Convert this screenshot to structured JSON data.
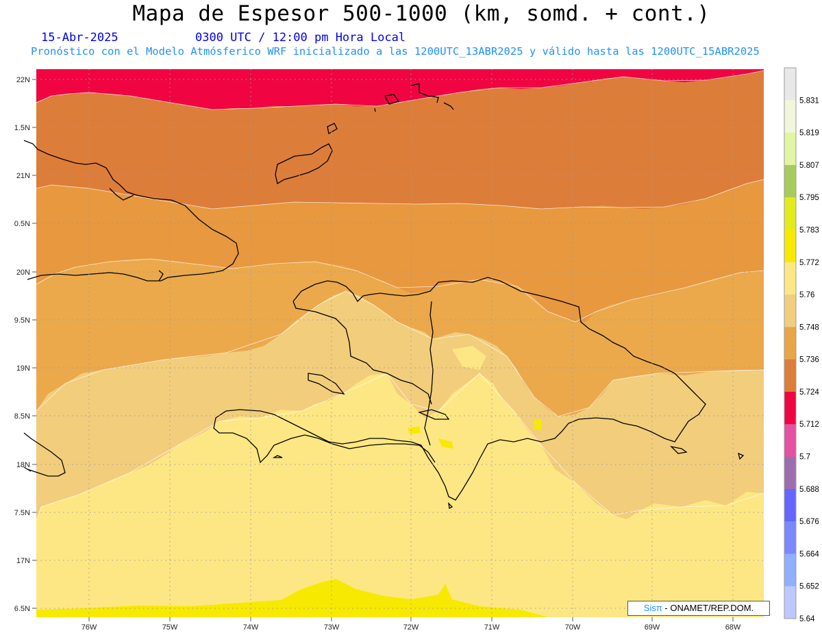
{
  "header": {
    "title": "Mapa de Espesor 500-1000 (km, somd. + cont.)",
    "date": "15-Abr-2025",
    "time": "0300 UTC / 12:00 pm Hora Local",
    "subtitle": "Pronóstico con el Modelo Atmósferico WRF inicializado a las 1200UTC_13ABR2025 y válido hasta las  1200UTC_15ABR2025"
  },
  "axes": {
    "lat_labels": [
      "22N",
      "1.5N",
      "21N",
      "0.5N",
      "20N",
      "9.5N",
      "19N",
      "8.5N",
      "18N",
      "7.5N",
      "17N",
      "6.5N"
    ],
    "lon_labels": [
      "76W",
      "75W",
      "74W",
      "73W",
      "72W",
      "71W",
      "70W",
      "69W",
      "68W"
    ]
  },
  "colorbar": {
    "labels": [
      "5.831",
      "5.819",
      "5.807",
      "5.795",
      "5.783",
      "5.772",
      "5.76",
      "5.748",
      "5.736",
      "5.724",
      "5.712",
      "5.7",
      "5.688",
      "5.676",
      "5.664",
      "5.652",
      "5.64"
    ],
    "colors": [
      "#e8e8e8",
      "#f2f7dc",
      "#e2f5a2",
      "#a8cc5c",
      "#e3ec1a",
      "#f8e900",
      "#fde784",
      "#f1cd7e",
      "#e8a647",
      "#dd7d3a",
      "#f00542",
      "#e552a2",
      "#9e6dae",
      "#6566ff",
      "#7a88ff",
      "#90b0ff",
      "#bcc8ff"
    ]
  },
  "map": {
    "field_colors": {
      "band_5712": "#f00542",
      "band_5724": "#dd7d3a",
      "band_5736": "#e8983f",
      "band_5748": "#eba94c",
      "band_5760": "#f2cd7c",
      "band_5772": "#fde784",
      "band_5783": "#f8e900"
    },
    "coastline_color": "#000000",
    "grid": "dotted"
  },
  "credit": {
    "brand": "Sisπ",
    "text": " - ONAMET/REP.DOM."
  }
}
